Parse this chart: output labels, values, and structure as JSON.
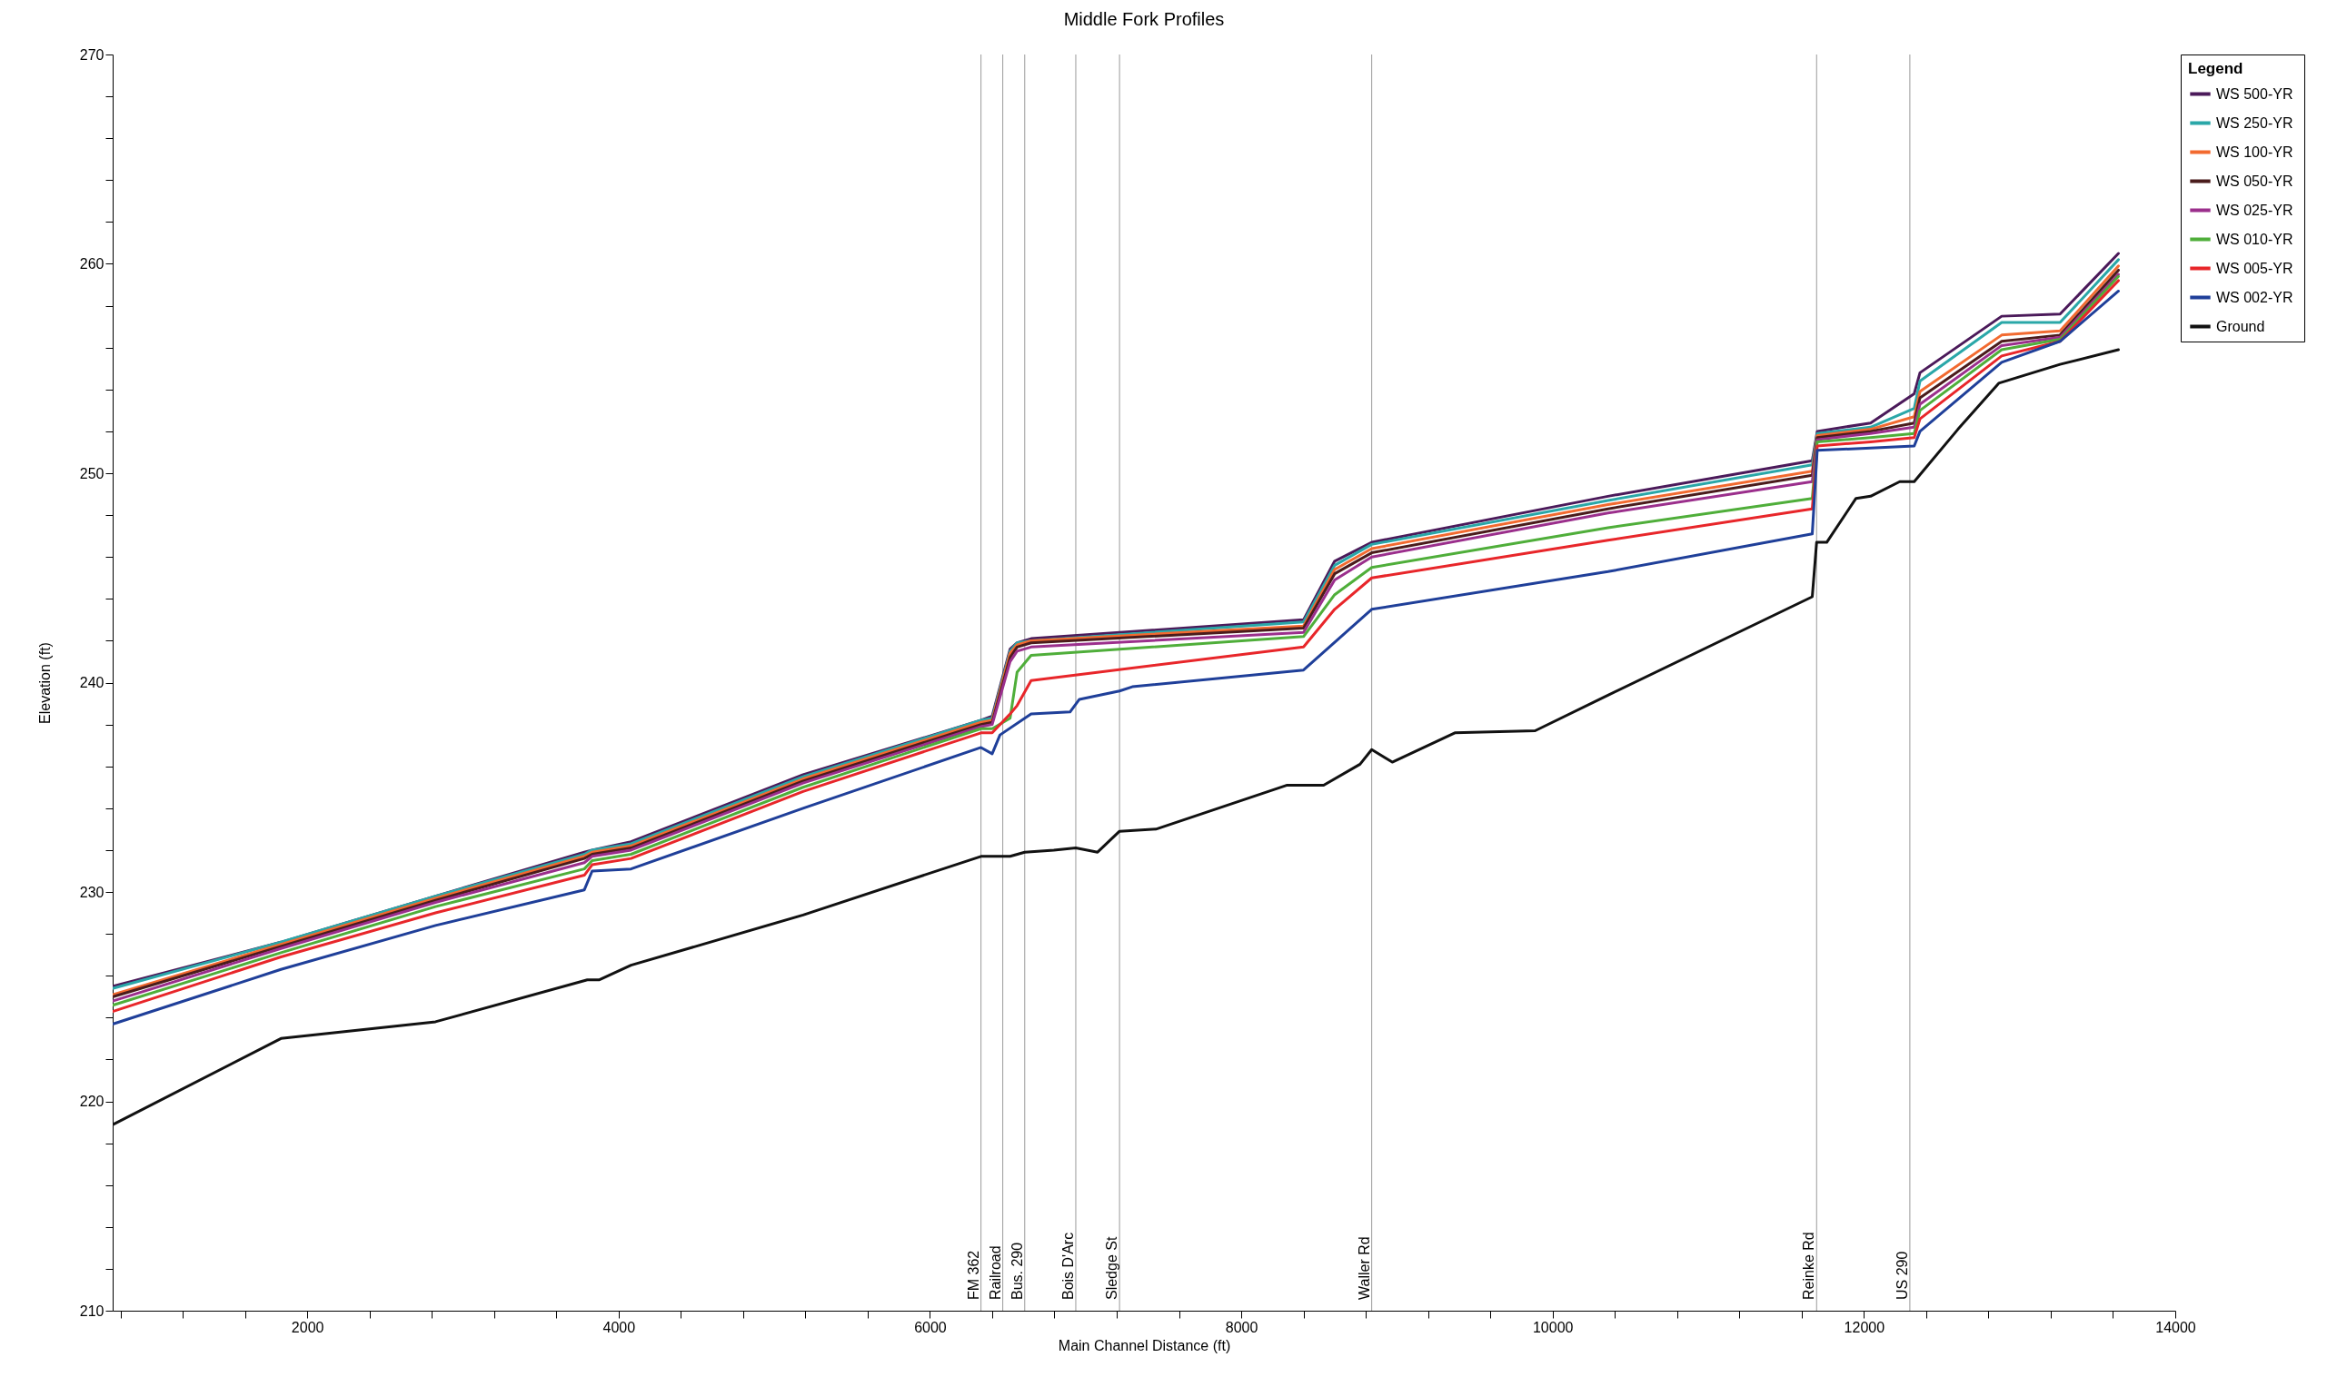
{
  "chart_data": {
    "type": "line",
    "title": "Middle Fork Profiles",
    "xlabel": "Main Channel Distance (ft)",
    "ylabel": "Elevation (ft)",
    "legend_title": "Legend",
    "legend": "top right",
    "x": [
      754,
      1831,
      2824,
      3780,
      3830,
      4080,
      5185,
      6328,
      6400,
      6515,
      6560,
      6650,
      8400,
      8600,
      8838,
      10356,
      11668,
      11700,
      12043,
      12323,
      12360,
      12885,
      13260,
      13635
    ],
    "series": [
      {
        "name": "WS  500-YR",
        "color": "#4b1a5a",
        "values": [
          225.5,
          227.6,
          229.8,
          231.9,
          232.0,
          232.4,
          235.6,
          238.2,
          238.4,
          241.6,
          241.9,
          242.1,
          243.0,
          245.8,
          246.7,
          248.9,
          250.6,
          252.0,
          252.4,
          253.8,
          254.8,
          257.5,
          257.6,
          260.5
        ]
      },
      {
        "name": "WS  250-YR",
        "color": "#2aa7a8",
        "values": [
          225.4,
          227.6,
          229.8,
          231.8,
          232.0,
          232.3,
          235.5,
          238.2,
          238.3,
          241.5,
          241.9,
          242.0,
          242.9,
          245.6,
          246.6,
          248.7,
          250.4,
          251.9,
          252.2,
          253.1,
          254.4,
          257.2,
          257.2,
          260.2
        ]
      },
      {
        "name": "WS  100-YR",
        "color": "#f26a30",
        "values": [
          225.1,
          227.5,
          229.7,
          231.7,
          231.9,
          232.2,
          235.4,
          238.1,
          238.2,
          241.4,
          241.8,
          242.0,
          242.7,
          245.4,
          246.4,
          248.5,
          250.1,
          251.8,
          252.1,
          252.7,
          253.9,
          256.6,
          256.8,
          259.9
        ]
      },
      {
        "name": "WS  050-YR",
        "color": "#4a1c1c",
        "values": [
          225.0,
          227.4,
          229.6,
          231.6,
          231.8,
          232.1,
          235.3,
          238.0,
          238.1,
          241.2,
          241.7,
          241.9,
          242.6,
          245.2,
          246.2,
          248.3,
          249.9,
          251.7,
          252.0,
          252.4,
          253.6,
          256.3,
          256.6,
          259.7
        ]
      },
      {
        "name": "WS  025-YR",
        "color": "#9b2f8c",
        "values": [
          224.8,
          227.3,
          229.5,
          231.4,
          231.7,
          232.0,
          235.2,
          237.9,
          238.0,
          241.0,
          241.5,
          241.7,
          242.4,
          244.9,
          246.0,
          248.1,
          249.6,
          251.6,
          251.9,
          252.2,
          253.3,
          256.1,
          256.5,
          259.5
        ]
      },
      {
        "name": "WS  010-YR",
        "color": "#4fae3a",
        "values": [
          224.6,
          227.1,
          229.3,
          231.1,
          231.5,
          231.8,
          235.0,
          237.8,
          237.8,
          238.3,
          240.5,
          241.3,
          242.2,
          244.2,
          245.5,
          247.4,
          248.8,
          251.5,
          251.7,
          251.9,
          253.0,
          255.9,
          256.4,
          259.4
        ]
      },
      {
        "name": "WS  005-YR",
        "color": "#e8262a",
        "values": [
          224.3,
          226.9,
          229.0,
          230.8,
          231.3,
          231.6,
          234.8,
          237.6,
          237.6,
          238.5,
          238.9,
          240.1,
          241.7,
          243.5,
          245.0,
          246.8,
          248.3,
          251.3,
          251.5,
          251.7,
          252.6,
          255.6,
          256.3,
          259.2
        ]
      },
      {
        "name": "WS  002-YR",
        "color": "#1f3f99",
        "x": [
          754,
          1831,
          2824,
          3780,
          3830,
          4080,
          5185,
          6328,
          6400,
          6450,
          6650,
          6900,
          6960,
          7218,
          7300,
          8400,
          8838,
          10356,
          11668,
          11700,
          12043,
          12323,
          12360,
          12885,
          13260,
          13635
        ],
        "values": [
          223.7,
          226.3,
          228.4,
          230.1,
          231.0,
          231.1,
          234.0,
          236.9,
          236.6,
          237.5,
          238.5,
          238.6,
          239.2,
          239.6,
          239.8,
          240.6,
          243.5,
          245.3,
          247.1,
          251.1,
          251.2,
          251.3,
          252.0,
          255.3,
          256.3,
          258.7
        ]
      },
      {
        "name": "Ground",
        "color": "#111111",
        "x": [
          754,
          1831,
          2824,
          3799,
          3874,
          4080,
          5185,
          6328,
          6515,
          6609,
          6796,
          6937,
          7077,
          7218,
          7452,
          8295,
          8529,
          8763,
          8838,
          8970,
          9372,
          9888,
          10356,
          11668,
          11696,
          11761,
          11949,
          12043,
          12230,
          12323,
          12604,
          12866,
          13260,
          13635
        ],
        "values": [
          218.9,
          223.0,
          223.8,
          225.8,
          225.8,
          226.5,
          228.9,
          231.7,
          231.7,
          231.9,
          232.0,
          232.1,
          231.9,
          232.9,
          233.0,
          235.1,
          235.1,
          236.1,
          236.8,
          236.2,
          237.6,
          237.7,
          239.4,
          244.1,
          246.7,
          246.7,
          248.8,
          248.9,
          249.6,
          249.6,
          252.1,
          254.3,
          255.2,
          255.9
        ]
      }
    ],
    "ref_lines": [
      {
        "axis": "x",
        "value": 6328,
        "label": "FM 362"
      },
      {
        "axis": "x",
        "value": 6468,
        "label": "Railroad"
      },
      {
        "axis": "x",
        "value": 6609,
        "label": "Bus. 290"
      },
      {
        "axis": "x",
        "value": 6937,
        "label": "Bois D'Arc"
      },
      {
        "axis": "x",
        "value": 7218,
        "label": "Sledge St"
      },
      {
        "axis": "x",
        "value": 8838,
        "label": "Waller Rd"
      },
      {
        "axis": "x",
        "value": 11696,
        "label": "Reinke Rd"
      },
      {
        "axis": "x",
        "value": 12295,
        "label": "US 290"
      }
    ],
    "xlim": [
      750,
      14000
    ],
    "xticks": [
      {
        "value": 800,
        "label": null
      },
      {
        "value": 1200,
        "label": null
      },
      {
        "value": 1600,
        "label": null
      },
      2000,
      {
        "value": 2400,
        "label": null
      },
      {
        "value": 2800,
        "label": null
      },
      {
        "value": 3200,
        "label": null
      },
      {
        "value": 3600,
        "label": null
      },
      4000,
      {
        "value": 4400,
        "label": null
      },
      {
        "value": 4800,
        "label": null
      },
      {
        "value": 5200,
        "label": null
      },
      {
        "value": 5600,
        "label": null
      },
      6000,
      {
        "value": 6400,
        "label": null
      },
      {
        "value": 6800,
        "label": null
      },
      {
        "value": 7200,
        "label": null
      },
      {
        "value": 7600,
        "label": null
      },
      8000,
      {
        "value": 8400,
        "label": null
      },
      {
        "value": 8800,
        "label": null
      },
      {
        "value": 9200,
        "label": null
      },
      {
        "value": 9600,
        "label": null
      },
      10000,
      {
        "value": 10400,
        "label": null
      },
      {
        "value": 10800,
        "label": null
      },
      {
        "value": 11200,
        "label": null
      },
      {
        "value": 11600,
        "label": null
      },
      12000,
      {
        "value": 12400,
        "label": null
      },
      {
        "value": 12800,
        "label": null
      },
      {
        "value": 13200,
        "label": null
      },
      {
        "value": 13600,
        "label": null
      },
      14000
    ],
    "ylim": [
      210,
      270
    ],
    "yticks": [
      210,
      {
        "value": 212,
        "label": null
      },
      {
        "value": 214,
        "label": null
      },
      {
        "value": 216,
        "label": null
      },
      {
        "value": 218,
        "label": null
      },
      220,
      {
        "value": 222,
        "label": null
      },
      {
        "value": 224,
        "label": null
      },
      {
        "value": 226,
        "label": null
      },
      {
        "value": 228,
        "label": null
      },
      230,
      {
        "value": 232,
        "label": null
      },
      {
        "value": 234,
        "label": null
      },
      {
        "value": 236,
        "label": null
      },
      {
        "value": 238,
        "label": null
      },
      240,
      {
        "value": 242,
        "label": null
      },
      {
        "value": 244,
        "label": null
      },
      {
        "value": 246,
        "label": null
      },
      {
        "value": 248,
        "label": null
      },
      250,
      {
        "value": 252,
        "label": null
      },
      {
        "value": 254,
        "label": null
      },
      {
        "value": 256,
        "label": null
      },
      {
        "value": 258,
        "label": null
      },
      260,
      {
        "value": 262,
        "label": null
      },
      {
        "value": 264,
        "label": null
      },
      {
        "value": 266,
        "label": null
      },
      {
        "value": 268,
        "label": null
      },
      270
    ]
  }
}
